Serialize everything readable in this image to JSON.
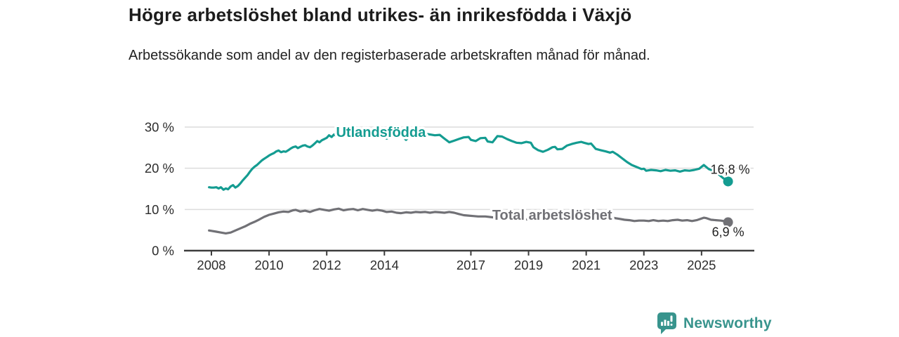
{
  "header": {
    "title": "Högre arbetslöshet bland utrikes- än inrikesfödda i Växjö",
    "subtitle": "Arbetssökande som andel av den registerbaserade arbetskraften månad för månad."
  },
  "footer": {
    "brand": "Newsworthy",
    "logo_icon": "speech-bubble-bar-chart"
  },
  "colors": {
    "accent_teal": "#149c91",
    "series_gray": "#717176",
    "text_dark": "#222222",
    "axis": "#3d3d3d",
    "grid": "#dcdcdc",
    "brand_teal": "#38948d",
    "halo": "#ffffff"
  },
  "chart_data": {
    "type": "line",
    "grid": "horizontal",
    "legend": "inline-labels",
    "x_axis": {
      "ticks": [
        2008,
        2010,
        2012,
        2014,
        2017,
        2019,
        2021,
        2023,
        2025
      ],
      "tick_labels": [
        "2008",
        "2010",
        "2012",
        "2014",
        "2017",
        "2019",
        "2021",
        "2023",
        "2025"
      ],
      "range": [
        2007.1,
        2026.8
      ]
    },
    "y_axis": {
      "ticks": [
        0,
        10,
        20,
        30
      ],
      "tick_labels": [
        "0 %",
        "10 %",
        "20 %",
        "30 %"
      ],
      "range": [
        0,
        30
      ]
    },
    "series": [
      {
        "name": "Utlandsfödda",
        "color": "#149c91",
        "end_value": 16.8,
        "end_label": "16,8 %",
        "end_label_offset": [
          -25,
          -11
        ],
        "label_anchor": {
          "x": 2013.88,
          "y": 28.8
        },
        "points": [
          [
            2007.92,
            15.4
          ],
          [
            2008.0,
            15.3
          ],
          [
            2008.08,
            15.3
          ],
          [
            2008.17,
            15.4
          ],
          [
            2008.25,
            15.1
          ],
          [
            2008.33,
            15.4
          ],
          [
            2008.42,
            14.8
          ],
          [
            2008.5,
            15.1
          ],
          [
            2008.58,
            14.9
          ],
          [
            2008.67,
            15.6
          ],
          [
            2008.75,
            15.9
          ],
          [
            2008.83,
            15.3
          ],
          [
            2008.92,
            15.7
          ],
          [
            2009.0,
            16.3
          ],
          [
            2009.08,
            17.0
          ],
          [
            2009.17,
            17.7
          ],
          [
            2009.25,
            18.3
          ],
          [
            2009.33,
            19.1
          ],
          [
            2009.42,
            19.9
          ],
          [
            2009.5,
            20.4
          ],
          [
            2009.58,
            20.8
          ],
          [
            2009.67,
            21.4
          ],
          [
            2009.75,
            21.9
          ],
          [
            2009.83,
            22.3
          ],
          [
            2009.92,
            22.7
          ],
          [
            2010.0,
            23.1
          ],
          [
            2010.08,
            23.4
          ],
          [
            2010.17,
            23.7
          ],
          [
            2010.25,
            24.1
          ],
          [
            2010.33,
            24.3
          ],
          [
            2010.42,
            23.9
          ],
          [
            2010.5,
            24.1
          ],
          [
            2010.58,
            24.0
          ],
          [
            2010.67,
            24.4
          ],
          [
            2010.75,
            24.8
          ],
          [
            2010.83,
            25.1
          ],
          [
            2010.92,
            25.3
          ],
          [
            2011.0,
            24.9
          ],
          [
            2011.08,
            25.2
          ],
          [
            2011.17,
            25.5
          ],
          [
            2011.25,
            25.6
          ],
          [
            2011.33,
            25.3
          ],
          [
            2011.42,
            25.1
          ],
          [
            2011.5,
            25.5
          ],
          [
            2011.58,
            26.0
          ],
          [
            2011.67,
            26.6
          ],
          [
            2011.75,
            26.3
          ],
          [
            2011.83,
            26.8
          ],
          [
            2011.92,
            27.1
          ],
          [
            2012.0,
            27.4
          ],
          [
            2012.08,
            28.0
          ],
          [
            2012.17,
            27.6
          ],
          [
            2012.25,
            28.2
          ],
          [
            2012.33,
            27.9
          ],
          [
            2012.42,
            28.1
          ],
          [
            2012.5,
            28.3
          ],
          [
            2012.58,
            28.0
          ],
          [
            2012.67,
            28.2
          ],
          [
            2012.75,
            28.4
          ],
          [
            2012.83,
            28.1
          ],
          [
            2012.92,
            28.3
          ],
          [
            2013.0,
            28.1
          ],
          [
            2013.17,
            27.9
          ],
          [
            2013.33,
            28.2
          ],
          [
            2013.5,
            27.7
          ],
          [
            2013.67,
            28.0
          ],
          [
            2013.83,
            27.8
          ],
          [
            2014.0,
            27.5
          ],
          [
            2014.08,
            27.2
          ],
          [
            2014.25,
            27.6
          ],
          [
            2014.42,
            28.0
          ],
          [
            2014.5,
            28.3
          ],
          [
            2014.58,
            27.9
          ],
          [
            2014.67,
            27.4
          ],
          [
            2014.75,
            26.9
          ],
          [
            2014.83,
            27.4
          ],
          [
            2014.92,
            27.9
          ],
          [
            2015.0,
            28.2
          ],
          [
            2015.08,
            28.4
          ],
          [
            2015.25,
            28.1
          ],
          [
            2015.42,
            28.4
          ],
          [
            2015.58,
            28.2
          ],
          [
            2015.75,
            28.0
          ],
          [
            2015.92,
            28.1
          ],
          [
            2016.08,
            27.2
          ],
          [
            2016.25,
            26.3
          ],
          [
            2016.42,
            26.7
          ],
          [
            2016.58,
            27.1
          ],
          [
            2016.75,
            27.5
          ],
          [
            2016.92,
            27.6
          ],
          [
            2017.0,
            26.9
          ],
          [
            2017.17,
            26.6
          ],
          [
            2017.33,
            27.3
          ],
          [
            2017.5,
            27.4
          ],
          [
            2017.58,
            26.5
          ],
          [
            2017.75,
            26.3
          ],
          [
            2017.92,
            27.8
          ],
          [
            2018.08,
            27.7
          ],
          [
            2018.25,
            27.1
          ],
          [
            2018.42,
            26.6
          ],
          [
            2018.58,
            26.2
          ],
          [
            2018.75,
            26.1
          ],
          [
            2018.92,
            26.4
          ],
          [
            2019.08,
            26.2
          ],
          [
            2019.17,
            25.1
          ],
          [
            2019.33,
            24.4
          ],
          [
            2019.5,
            24.0
          ],
          [
            2019.67,
            24.5
          ],
          [
            2019.83,
            25.1
          ],
          [
            2019.92,
            25.2
          ],
          [
            2020.0,
            24.6
          ],
          [
            2020.17,
            24.7
          ],
          [
            2020.33,
            25.5
          ],
          [
            2020.5,
            25.9
          ],
          [
            2020.67,
            26.2
          ],
          [
            2020.83,
            26.4
          ],
          [
            2020.92,
            26.2
          ],
          [
            2021.08,
            25.9
          ],
          [
            2021.17,
            26.0
          ],
          [
            2021.33,
            24.7
          ],
          [
            2021.5,
            24.4
          ],
          [
            2021.67,
            24.1
          ],
          [
            2021.83,
            23.8
          ],
          [
            2021.92,
            24.0
          ],
          [
            2022.08,
            23.3
          ],
          [
            2022.25,
            22.4
          ],
          [
            2022.42,
            21.5
          ],
          [
            2022.58,
            20.8
          ],
          [
            2022.75,
            20.3
          ],
          [
            2022.92,
            19.8
          ],
          [
            2023.0,
            19.9
          ],
          [
            2023.08,
            19.4
          ],
          [
            2023.25,
            19.6
          ],
          [
            2023.42,
            19.5
          ],
          [
            2023.58,
            19.3
          ],
          [
            2023.75,
            19.6
          ],
          [
            2023.92,
            19.4
          ],
          [
            2024.08,
            19.5
          ],
          [
            2024.25,
            19.2
          ],
          [
            2024.42,
            19.5
          ],
          [
            2024.58,
            19.4
          ],
          [
            2024.75,
            19.6
          ],
          [
            2024.92,
            19.9
          ],
          [
            2025.08,
            20.8
          ],
          [
            2025.25,
            19.8
          ],
          [
            2025.42,
            19.4
          ],
          [
            2025.58,
            18.6
          ],
          [
            2025.75,
            17.6
          ],
          [
            2025.92,
            16.8
          ]
        ]
      },
      {
        "name": "Total arbetslöshet",
        "color": "#717176",
        "end_value": 6.9,
        "end_label": "6,9 %",
        "end_label_offset": [
          -23,
          20
        ],
        "label_anchor": {
          "x": 2019.82,
          "y": 8.7
        },
        "points": [
          [
            2007.92,
            4.9
          ],
          [
            2008.0,
            4.8
          ],
          [
            2008.17,
            4.6
          ],
          [
            2008.33,
            4.4
          ],
          [
            2008.5,
            4.2
          ],
          [
            2008.67,
            4.4
          ],
          [
            2008.83,
            4.9
          ],
          [
            2009.0,
            5.4
          ],
          [
            2009.17,
            5.9
          ],
          [
            2009.33,
            6.5
          ],
          [
            2009.5,
            7.0
          ],
          [
            2009.67,
            7.6
          ],
          [
            2009.83,
            8.2
          ],
          [
            2010.0,
            8.7
          ],
          [
            2010.17,
            9.0
          ],
          [
            2010.33,
            9.3
          ],
          [
            2010.5,
            9.5
          ],
          [
            2010.67,
            9.4
          ],
          [
            2010.83,
            9.8
          ],
          [
            2010.92,
            9.9
          ],
          [
            2011.08,
            9.5
          ],
          [
            2011.25,
            9.7
          ],
          [
            2011.42,
            9.4
          ],
          [
            2011.58,
            9.8
          ],
          [
            2011.75,
            10.1
          ],
          [
            2011.92,
            9.9
          ],
          [
            2012.08,
            9.7
          ],
          [
            2012.25,
            10.0
          ],
          [
            2012.42,
            10.2
          ],
          [
            2012.58,
            9.8
          ],
          [
            2012.75,
            10.0
          ],
          [
            2012.92,
            10.1
          ],
          [
            2013.08,
            9.8
          ],
          [
            2013.25,
            10.1
          ],
          [
            2013.42,
            9.9
          ],
          [
            2013.58,
            9.7
          ],
          [
            2013.75,
            9.9
          ],
          [
            2013.92,
            9.7
          ],
          [
            2014.08,
            9.4
          ],
          [
            2014.25,
            9.5
          ],
          [
            2014.42,
            9.2
          ],
          [
            2014.58,
            9.1
          ],
          [
            2014.75,
            9.3
          ],
          [
            2014.92,
            9.2
          ],
          [
            2015.08,
            9.4
          ],
          [
            2015.25,
            9.3
          ],
          [
            2015.42,
            9.4
          ],
          [
            2015.58,
            9.2
          ],
          [
            2015.75,
            9.4
          ],
          [
            2015.92,
            9.3
          ],
          [
            2016.08,
            9.2
          ],
          [
            2016.25,
            9.4
          ],
          [
            2016.42,
            9.2
          ],
          [
            2016.58,
            8.9
          ],
          [
            2016.75,
            8.6
          ],
          [
            2016.92,
            8.5
          ],
          [
            2017.08,
            8.4
          ],
          [
            2017.25,
            8.3
          ],
          [
            2017.5,
            8.3
          ],
          [
            2017.75,
            8.1
          ],
          [
            2018.0,
            7.9
          ],
          [
            2018.25,
            7.8
          ],
          [
            2018.5,
            7.7
          ],
          [
            2018.75,
            7.6
          ],
          [
            2019.0,
            7.6
          ],
          [
            2019.25,
            7.5
          ],
          [
            2019.5,
            7.4
          ],
          [
            2019.75,
            7.6
          ],
          [
            2020.0,
            8.0
          ],
          [
            2020.25,
            8.8
          ],
          [
            2020.5,
            9.4
          ],
          [
            2020.75,
            9.6
          ],
          [
            2021.0,
            9.3
          ],
          [
            2021.25,
            8.9
          ],
          [
            2021.5,
            8.5
          ],
          [
            2021.75,
            8.2
          ],
          [
            2022.0,
            7.9
          ],
          [
            2022.17,
            7.7
          ],
          [
            2022.33,
            7.5
          ],
          [
            2022.5,
            7.4
          ],
          [
            2022.67,
            7.2
          ],
          [
            2022.83,
            7.3
          ],
          [
            2023.0,
            7.3
          ],
          [
            2023.17,
            7.2
          ],
          [
            2023.33,
            7.4
          ],
          [
            2023.5,
            7.2
          ],
          [
            2023.67,
            7.3
          ],
          [
            2023.83,
            7.2
          ],
          [
            2024.0,
            7.4
          ],
          [
            2024.17,
            7.5
          ],
          [
            2024.33,
            7.3
          ],
          [
            2024.5,
            7.4
          ],
          [
            2024.67,
            7.2
          ],
          [
            2024.83,
            7.4
          ],
          [
            2024.92,
            7.6
          ],
          [
            2025.08,
            8.0
          ],
          [
            2025.17,
            7.9
          ],
          [
            2025.33,
            7.5
          ],
          [
            2025.5,
            7.4
          ],
          [
            2025.67,
            7.3
          ],
          [
            2025.83,
            7.1
          ],
          [
            2025.92,
            6.9
          ]
        ]
      }
    ]
  }
}
